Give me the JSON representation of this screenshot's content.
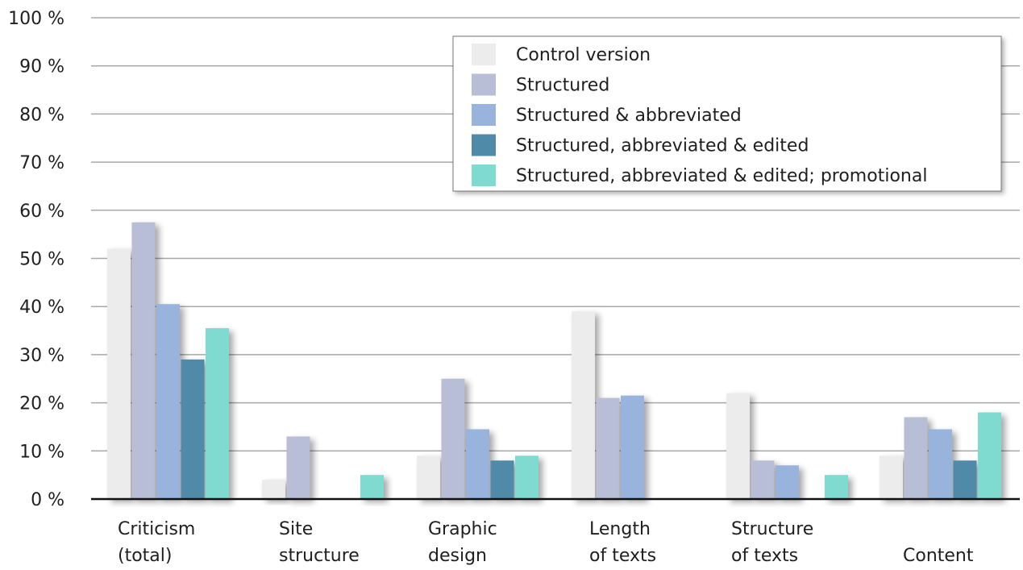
{
  "chart_data": {
    "type": "bar",
    "categories": [
      [
        "Criticism",
        "(total)"
      ],
      [
        "Site",
        "structure"
      ],
      [
        "Graphic",
        "design"
      ],
      [
        "Length",
        "of texts"
      ],
      [
        "Structure",
        "of texts"
      ],
      [
        "Content"
      ]
    ],
    "series": [
      {
        "name": "Control version",
        "color": "#ececec",
        "values": [
          52,
          4,
          9,
          39,
          22,
          9
        ]
      },
      {
        "name": "Structured",
        "color": "#b8bed6",
        "values": [
          57.5,
          13,
          25,
          21,
          8,
          17
        ]
      },
      {
        "name": "Structured & abbreviated",
        "color": "#99b4dc",
        "values": [
          40.5,
          0,
          14.5,
          21.5,
          7,
          14.5
        ]
      },
      {
        "name": "Structured, abbreviated & edited",
        "color": "#4f8aa8",
        "values": [
          29,
          0,
          8,
          0,
          0,
          8
        ]
      },
      {
        "name": "Structured, abbreviated & edited; promotional",
        "color": "#7fdad0",
        "values": [
          35.5,
          5,
          9,
          0,
          5,
          18
        ]
      }
    ],
    "y_ticks": [
      "0 %",
      "10 %",
      "20 %",
      "30 %",
      "40 %",
      "50 %",
      "60 %",
      "70 %",
      "80 %",
      "90 %",
      "100 %"
    ],
    "ylim": [
      0,
      100
    ],
    "grid": true,
    "legend_position": "top-right",
    "title": "",
    "xlabel": "",
    "ylabel": ""
  }
}
